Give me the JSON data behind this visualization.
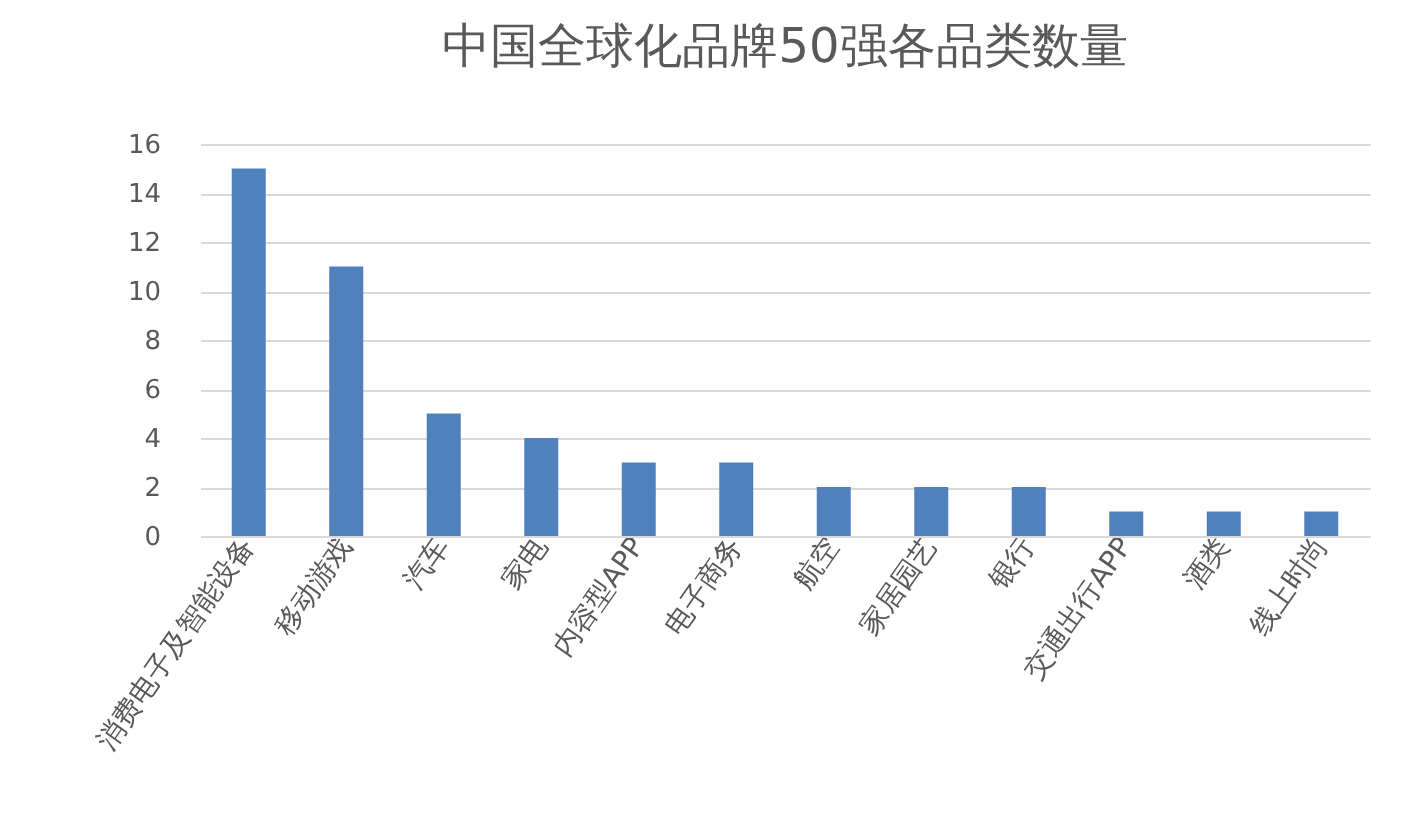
{
  "chart_data": {
    "type": "bar",
    "title": "中国全球化品牌50强各品类数量",
    "categories": [
      "消费电子及智能设备",
      "移动游戏",
      "汽车",
      "家电",
      "内容型APP",
      "电子商务",
      "航空",
      "家居园艺",
      "银行",
      "交通出行APP",
      "酒类",
      "线上时尚"
    ],
    "values": [
      15,
      11,
      5,
      4,
      3,
      3,
      2,
      2,
      2,
      1,
      1,
      1
    ],
    "color": "#4f81bd",
    "ylim": [
      0,
      16
    ],
    "yticks": [
      0,
      2,
      4,
      6,
      8,
      10,
      12,
      14,
      16
    ],
    "grid": "y"
  }
}
